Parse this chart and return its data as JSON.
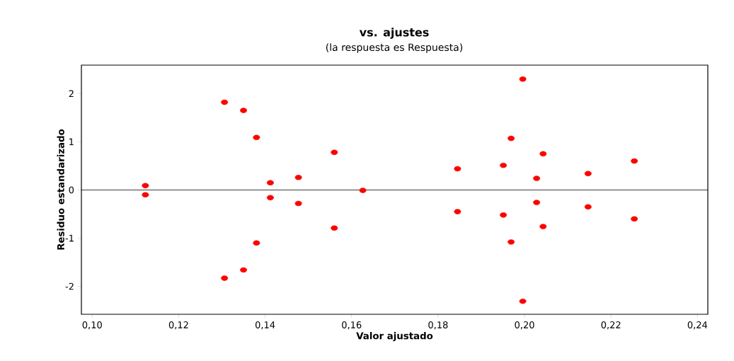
{
  "chart_data": {
    "type": "scatter",
    "title": "vs. ajustes",
    "subtitle": "(la respuesta es Respuesta)",
    "xlabel": "Valor ajustado",
    "ylabel": "Residuo estandarizado",
    "x": [
      0.1123,
      0.1123,
      0.1306,
      0.135,
      0.138,
      0.1412,
      0.1412,
      0.1477,
      0.1477,
      0.156,
      0.156,
      0.1626,
      0.138,
      0.135,
      0.1306,
      0.1996,
      0.1996,
      0.1969,
      0.1969,
      0.2043,
      0.2043,
      0.2254,
      0.2254,
      0.1845,
      0.1845,
      0.1951,
      0.1951,
      0.2147,
      0.2147,
      0.2028,
      0.2028
    ],
    "series": [
      {
        "color": "#ff0000",
        "values": [
          0.09,
          -0.1,
          1.82,
          1.65,
          1.09,
          0.15,
          -0.16,
          0.26,
          -0.28,
          0.78,
          -0.79,
          -0.01,
          -1.1,
          -1.66,
          -1.83,
          2.3,
          -2.31,
          1.07,
          -1.08,
          0.75,
          -0.76,
          0.6,
          -0.6,
          0.44,
          -0.45,
          0.51,
          -0.52,
          0.34,
          -0.35,
          0.24,
          -0.26
        ]
      }
    ],
    "xlim": [
      0.0975,
      0.2424
    ],
    "ylim": [
      -2.58,
      2.59
    ],
    "xticks": [
      {
        "value": 0.1,
        "label": "0,10"
      },
      {
        "value": 0.12,
        "label": "0,12"
      },
      {
        "value": 0.14,
        "label": "0,14"
      },
      {
        "value": 0.16,
        "label": "0,16"
      },
      {
        "value": 0.18,
        "label": "0,18"
      },
      {
        "value": 0.2,
        "label": "0,20"
      },
      {
        "value": 0.22,
        "label": "0,22"
      },
      {
        "value": 0.24,
        "label": "0,24"
      }
    ],
    "yticks": [
      -2,
      -1,
      0,
      1,
      2
    ],
    "ref_lines": [
      {
        "axis": "y",
        "value": 0,
        "color": "#000000"
      }
    ],
    "marker": "circle",
    "grid": false
  }
}
